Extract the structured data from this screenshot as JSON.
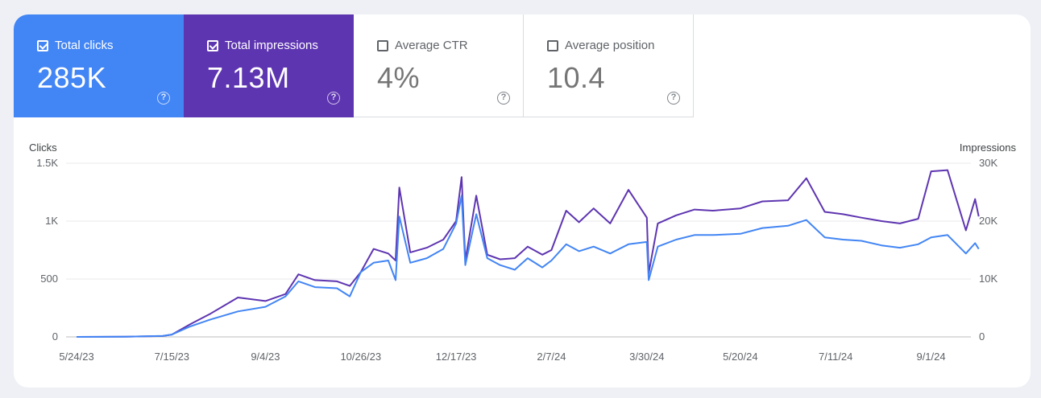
{
  "metrics": [
    {
      "label": "Total clicks",
      "value": "285K",
      "checked": true,
      "color": "#4285f4"
    },
    {
      "label": "Total impressions",
      "value": "7.13M",
      "checked": true,
      "color": "#5e35b1"
    },
    {
      "label": "Average CTR",
      "value": "4%",
      "checked": false,
      "color": "#ffffff"
    },
    {
      "label": "Average position",
      "value": "10.4",
      "checked": false,
      "color": "#ffffff"
    }
  ],
  "help_glyph": "?",
  "chart_data": {
    "type": "line",
    "left_axis_title": "Clicks",
    "right_axis_title": "Impressions",
    "left_ticks": [
      "0",
      "500",
      "1K",
      "1.5K"
    ],
    "right_ticks": [
      "0",
      "10K",
      "20K",
      "30K"
    ],
    "ylim_left": [
      0,
      1500
    ],
    "ylim_right": [
      0,
      30000
    ],
    "x_tick_labels": [
      "5/24/23",
      "7/15/23",
      "9/4/23",
      "10/26/23",
      "12/17/23",
      "2/7/24",
      "3/30/24",
      "5/20/24",
      "7/11/24",
      "9/1/24"
    ],
    "gridlines": true,
    "series": [
      {
        "name": "Total clicks",
        "axis": "left",
        "color": "#4285f4",
        "points": [
          [
            "5/24/23",
            0
          ],
          [
            "6/20/23",
            2
          ],
          [
            "7/10/23",
            8
          ],
          [
            "7/15/23",
            20
          ],
          [
            "7/25/23",
            90
          ],
          [
            "8/5/23",
            150
          ],
          [
            "8/20/23",
            220
          ],
          [
            "9/4/23",
            260
          ],
          [
            "9/15/23",
            350
          ],
          [
            "9/22/23",
            480
          ],
          [
            "10/1/23",
            430
          ],
          [
            "10/13/23",
            420
          ],
          [
            "10/20/23",
            350
          ],
          [
            "10/26/23",
            560
          ],
          [
            "11/2/23",
            640
          ],
          [
            "11/10/23",
            660
          ],
          [
            "11/14/23",
            490
          ],
          [
            "11/16/23",
            1040
          ],
          [
            "11/22/23",
            640
          ],
          [
            "12/1/23",
            680
          ],
          [
            "12/10/23",
            760
          ],
          [
            "12/17/23",
            980
          ],
          [
            "12/20/23",
            1220
          ],
          [
            "12/22/23",
            620
          ],
          [
            "12/28/23",
            1060
          ],
          [
            "1/3/24",
            680
          ],
          [
            "1/10/24",
            620
          ],
          [
            "1/18/24",
            580
          ],
          [
            "1/25/24",
            680
          ],
          [
            "2/2/24",
            600
          ],
          [
            "2/7/24",
            660
          ],
          [
            "2/15/24",
            800
          ],
          [
            "2/22/24",
            740
          ],
          [
            "3/1/24",
            780
          ],
          [
            "3/10/24",
            720
          ],
          [
            "3/20/24",
            800
          ],
          [
            "3/30/24",
            820
          ],
          [
            "3/31/24",
            490
          ],
          [
            "4/5/24",
            780
          ],
          [
            "4/15/24",
            840
          ],
          [
            "4/25/24",
            880
          ],
          [
            "5/5/24",
            880
          ],
          [
            "5/20/24",
            890
          ],
          [
            "6/1/24",
            940
          ],
          [
            "6/15/24",
            960
          ],
          [
            "6/25/24",
            1010
          ],
          [
            "7/5/24",
            860
          ],
          [
            "7/15/24",
            840
          ],
          [
            "7/25/24",
            830
          ],
          [
            "8/5/24",
            790
          ],
          [
            "8/15/24",
            770
          ],
          [
            "8/25/24",
            800
          ],
          [
            "9/1/24",
            860
          ],
          [
            "9/10/24",
            880
          ],
          [
            "9/20/24",
            720
          ],
          [
            "9/25/24",
            810
          ],
          [
            "9/27/24",
            760
          ]
        ]
      },
      {
        "name": "Total impressions",
        "axis": "right",
        "color": "#5e35b1",
        "points": [
          [
            "5/24/23",
            0
          ],
          [
            "6/20/23",
            40
          ],
          [
            "7/10/23",
            150
          ],
          [
            "7/15/23",
            400
          ],
          [
            "7/25/23",
            2200
          ],
          [
            "8/5/23",
            4000
          ],
          [
            "8/20/23",
            6800
          ],
          [
            "9/4/23",
            6200
          ],
          [
            "9/15/23",
            7400
          ],
          [
            "9/22/23",
            10800
          ],
          [
            "10/1/23",
            9800
          ],
          [
            "10/13/23",
            9600
          ],
          [
            "10/20/23",
            8800
          ],
          [
            "10/26/23",
            11200
          ],
          [
            "11/2/23",
            15200
          ],
          [
            "11/10/23",
            14400
          ],
          [
            "11/14/23",
            13200
          ],
          [
            "11/16/23",
            25800
          ],
          [
            "11/22/23",
            14600
          ],
          [
            "12/1/23",
            15400
          ],
          [
            "12/10/23",
            16800
          ],
          [
            "12/17/23",
            20000
          ],
          [
            "12/20/23",
            27600
          ],
          [
            "12/22/23",
            13200
          ],
          [
            "12/28/23",
            24400
          ],
          [
            "1/3/24",
            14200
          ],
          [
            "1/10/24",
            13400
          ],
          [
            "1/18/24",
            13600
          ],
          [
            "1/25/24",
            15600
          ],
          [
            "2/2/24",
            14200
          ],
          [
            "2/7/24",
            15000
          ],
          [
            "2/15/24",
            21800
          ],
          [
            "2/22/24",
            19800
          ],
          [
            "3/1/24",
            22200
          ],
          [
            "3/10/24",
            19600
          ],
          [
            "3/20/24",
            25400
          ],
          [
            "3/30/24",
            20600
          ],
          [
            "3/31/24",
            11000
          ],
          [
            "4/5/24",
            19600
          ],
          [
            "4/15/24",
            21000
          ],
          [
            "4/25/24",
            22000
          ],
          [
            "5/5/24",
            21800
          ],
          [
            "5/20/24",
            22200
          ],
          [
            "6/1/24",
            23400
          ],
          [
            "6/15/24",
            23600
          ],
          [
            "6/25/24",
            27400
          ],
          [
            "7/5/24",
            21600
          ],
          [
            "7/15/24",
            21200
          ],
          [
            "7/25/24",
            20600
          ],
          [
            "8/5/24",
            20000
          ],
          [
            "8/15/24",
            19600
          ],
          [
            "8/25/24",
            20400
          ],
          [
            "9/1/24",
            28600
          ],
          [
            "9/10/24",
            28800
          ],
          [
            "9/20/24",
            18400
          ],
          [
            "9/25/24",
            23800
          ],
          [
            "9/27/24",
            20800
          ]
        ]
      }
    ]
  }
}
